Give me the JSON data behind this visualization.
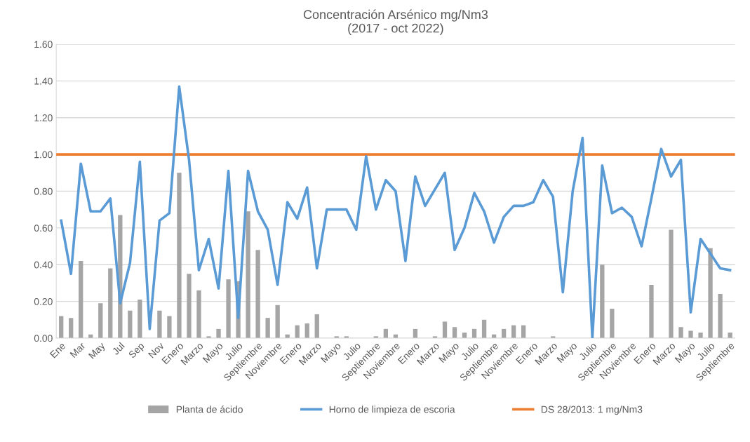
{
  "chart_data": {
    "type": "bar",
    "title": "Concentración Arsénico mg/Nm3\n(2017 - oct 2022)",
    "categories": [
      "Ene",
      null,
      "Mar",
      null,
      "May",
      null,
      "Jul",
      null,
      "Sep",
      null,
      "Nov",
      null,
      "Enero",
      null,
      "Marzo",
      null,
      "Mayo",
      null,
      "Julio",
      null,
      "Septiembre",
      null,
      "Noviembre",
      null,
      "Enero",
      null,
      "Marzo",
      null,
      "Mayo",
      null,
      "Julio",
      null,
      "Septiembre",
      null,
      "Noviembre",
      null,
      "Enero",
      null,
      "Marzo",
      null,
      "Mayo",
      null,
      "Julio",
      null,
      "Septiembre",
      null,
      "Noviembre",
      null,
      "Enero",
      null,
      "Marzo",
      null,
      "Mayo",
      null,
      "Julio",
      null,
      "Septiembre",
      null,
      "Noviembre",
      null,
      "Enero",
      null,
      "Marzo",
      null,
      "Mayo",
      null,
      "Julio",
      null,
      "Septiembre"
    ],
    "series": [
      {
        "name": "Planta de ácido",
        "color": "#a5a5a5",
        "values": [
          0.12,
          0.11,
          0.42,
          0.02,
          0.19,
          0.38,
          0.67,
          0.15,
          0.21,
          0,
          0.15,
          0.12,
          0.9,
          0.35,
          0.26,
          0.01,
          0.05,
          0.32,
          0.31,
          0.69,
          0.48,
          0.11,
          0.18,
          0.02,
          0.07,
          0.08,
          0.13,
          0,
          0.01,
          0.01,
          0,
          0,
          0.01,
          0.05,
          0.02,
          0,
          0.05,
          0,
          0.01,
          0.09,
          0.06,
          0.03,
          0.05,
          0.1,
          0.02,
          0.05,
          0.07,
          0.07,
          0,
          0,
          0.01,
          0,
          0,
          0,
          0,
          0.4,
          0.16,
          0,
          0,
          0,
          0.29,
          0,
          0.59,
          0.06,
          0.04,
          0.03,
          0.49,
          0.24,
          0.03
        ]
      },
      {
        "name": "Horno de limpieza de escoria",
        "type": "line",
        "color": "#5b9bd5",
        "values": [
          0.64,
          0.35,
          0.95,
          0.69,
          0.69,
          0.76,
          0.19,
          0.41,
          0.96,
          0.05,
          0.64,
          0.68,
          1.37,
          0.97,
          0.37,
          0.54,
          0.27,
          0.91,
          0.11,
          0.91,
          0.69,
          0.59,
          0.29,
          0.74,
          0.65,
          0.82,
          0.38,
          0.7,
          0.7,
          0.7,
          0.59,
          0.99,
          0.7,
          0.86,
          0.8,
          0.42,
          0.88,
          0.72,
          0.81,
          0.9,
          0.48,
          0.6,
          0.79,
          0.69,
          0.52,
          0.66,
          0.72,
          0.72,
          0.74,
          0.86,
          0.77,
          0.25,
          0.8,
          1.09,
          0.0,
          0.94,
          0.68,
          0.71,
          0.66,
          0.5,
          0.76,
          1.03,
          0.88,
          0.97,
          0.14,
          0.54,
          0.46,
          0.38,
          0.37
        ]
      }
    ],
    "ref_lines": [
      {
        "axis": "y",
        "value": 1.0,
        "label": "DS 28/2013: 1 mg/Nm3",
        "color": "#ed7d31"
      }
    ],
    "ylim": [
      0,
      1.6
    ],
    "yticks": [
      {
        "value": 0,
        "label": "0.00"
      },
      {
        "value": 0.2,
        "label": "0.20"
      },
      {
        "value": 0.4,
        "label": "0.40"
      },
      {
        "value": 0.6,
        "label": "0.60"
      },
      {
        "value": 0.8,
        "label": "0.80"
      },
      {
        "value": 1.0,
        "label": "1.00"
      },
      {
        "value": 1.2,
        "label": "1.20"
      },
      {
        "value": 1.4,
        "label": "1.40"
      },
      {
        "value": 1.6,
        "label": "1.60"
      }
    ],
    "grid": "y",
    "legend": "bottom",
    "marker": "none"
  }
}
